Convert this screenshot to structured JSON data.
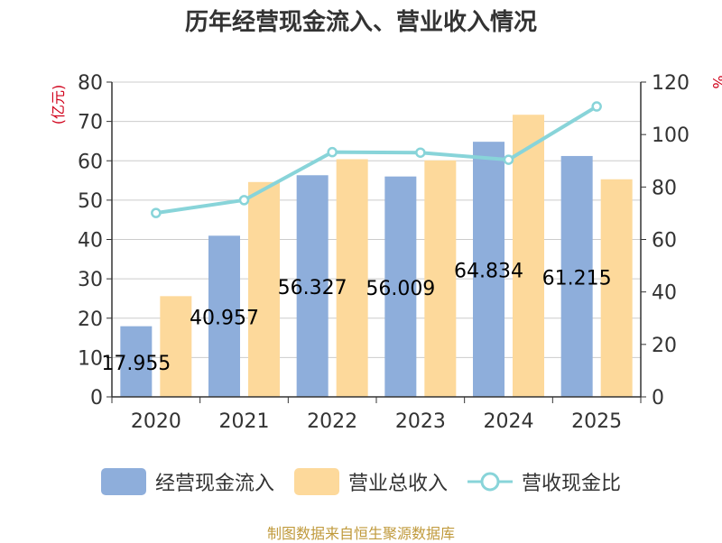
{
  "chart_data": {
    "type": "bar",
    "title": "历年经营现金流入、营业收入情况",
    "categories": [
      "2020",
      "2021",
      "2022",
      "2023",
      "2024",
      "2025"
    ],
    "series": [
      {
        "name": "经营现金流入",
        "kind": "bar",
        "axis": "left",
        "color": "#8eaedb",
        "values": [
          17.955,
          40.957,
          56.327,
          56.009,
          64.834,
          61.215
        ],
        "data_labels": [
          "17.955",
          "40.957",
          "56.327",
          "56.009",
          "64.834",
          "61.215"
        ]
      },
      {
        "name": "营业总收入",
        "kind": "bar",
        "axis": "left",
        "color": "#fdd99b",
        "values": [
          25.6,
          54.6,
          60.4,
          60.1,
          71.7,
          55.3
        ]
      },
      {
        "name": "营收现金比",
        "kind": "line",
        "axis": "right",
        "color": "#88d4d9",
        "values": [
          70.1,
          75.0,
          93.3,
          93.1,
          90.4,
          110.7
        ]
      }
    ],
    "ylabel_left": "(亿元)",
    "ylabel_right": "%",
    "ylim_left": [
      0,
      80
    ],
    "ylim_right": [
      0,
      120
    ],
    "yticks_left": [
      "0",
      "10",
      "20",
      "30",
      "40",
      "50",
      "60",
      "70",
      "80"
    ],
    "yticks_right": [
      "0",
      "20",
      "40",
      "60",
      "80",
      "100",
      "120"
    ],
    "grid": true,
    "legend_position": "bottom"
  },
  "legend": {
    "items": [
      {
        "label": "经营现金流入",
        "color": "#8eaedb",
        "type": "bar"
      },
      {
        "label": "营业总收入",
        "color": "#fdd99b",
        "type": "bar"
      },
      {
        "label": "营收现金比",
        "color": "#88d4d9",
        "type": "line"
      }
    ]
  },
  "source": "制图数据来自恒生聚源数据库"
}
